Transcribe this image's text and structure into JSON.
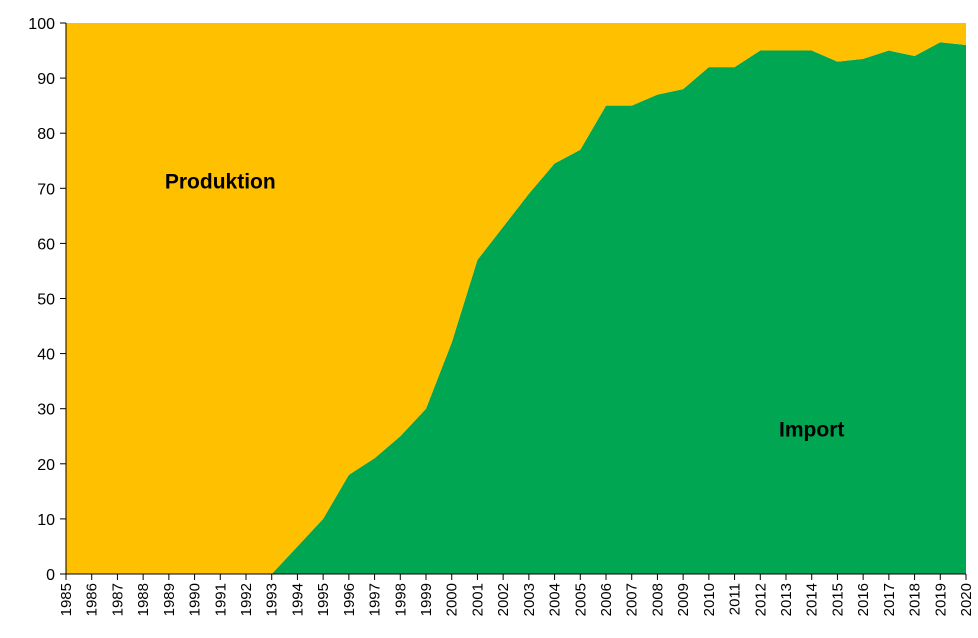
{
  "chart_data": {
    "type": "area",
    "title": "",
    "xlabel": "",
    "ylabel": "",
    "ylim": [
      0,
      100
    ],
    "yticks": [
      0,
      10,
      20,
      30,
      40,
      50,
      60,
      70,
      80,
      90,
      100
    ],
    "grid": false,
    "legend": "none",
    "stacked": true,
    "categories": [
      "1985",
      "1986",
      "1987",
      "1988",
      "1989",
      "1990",
      "1991",
      "1992",
      "1993",
      "1994",
      "1995",
      "1996",
      "1997",
      "1998",
      "1999",
      "2000",
      "2001",
      "2002",
      "2003",
      "2004",
      "2005",
      "2006",
      "2007",
      "2008",
      "2009",
      "2010",
      "2011",
      "2012",
      "2013",
      "2014",
      "2015",
      "2016",
      "2017",
      "2018",
      "2019",
      "2020"
    ],
    "series": [
      {
        "name": "Import",
        "color": "#00A651",
        "values": [
          0,
          0,
          0,
          0,
          0,
          0,
          0,
          0,
          0,
          5,
          10,
          18,
          21,
          25,
          30,
          42,
          57,
          63,
          69,
          74.5,
          77,
          85,
          85,
          87,
          88,
          92,
          92,
          95,
          95,
          95,
          93,
          93.5,
          95,
          94,
          96.5,
          96
        ]
      },
      {
        "name": "Produktion",
        "color": "#FFC000",
        "values": [
          100,
          100,
          100,
          100,
          100,
          100,
          100,
          100,
          100,
          95,
          90,
          82,
          79,
          75,
          70,
          58,
          43,
          37,
          31,
          25.5,
          23,
          15,
          15,
          13,
          12,
          8,
          8,
          5,
          5,
          5,
          7,
          6.5,
          5,
          6,
          3.5,
          4
        ]
      }
    ],
    "annotations": [
      {
        "text": "Produktion",
        "x": "1991",
        "y": 70
      },
      {
        "text": "Import",
        "x": "2014",
        "y": 25
      }
    ]
  }
}
